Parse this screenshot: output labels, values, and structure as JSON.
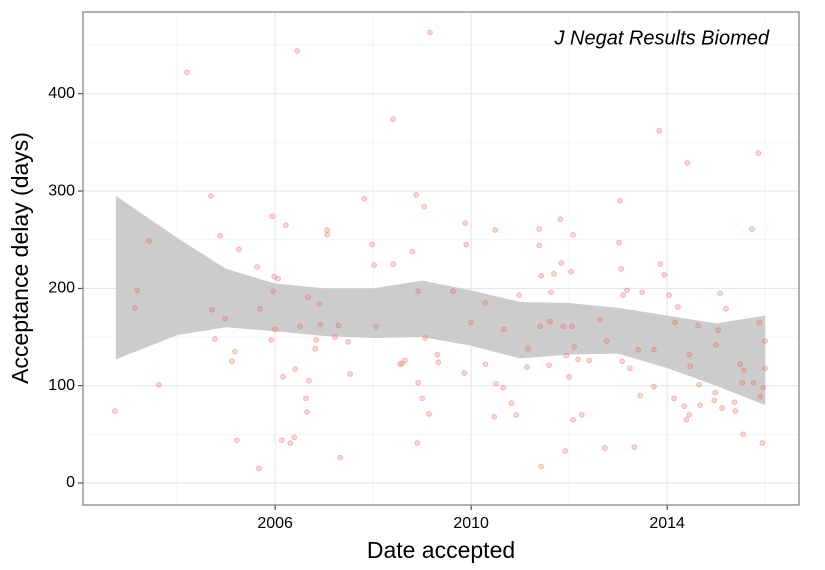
{
  "chart_data": {
    "type": "scatter",
    "annotation": "J Negat Results Biomed",
    "x_label": "Date accepted",
    "y_label": "Acceptance delay (days)",
    "xlim": [
      2002.08,
      2016.69
    ],
    "ylim": [
      -22.6,
      484
    ],
    "xticks": [
      2006,
      2010,
      2014
    ],
    "yticks": [
      0,
      100,
      200,
      300,
      400
    ],
    "grid": true,
    "point_color": "#f35a50",
    "band_color": "#cccccc",
    "x": [
      2002.73,
      2003.14,
      2003.18,
      2003.43,
      2003.63,
      2004.2,
      2004.69,
      2004.71,
      2004.77,
      2004.88,
      2004.98,
      2005.12,
      2005.18,
      2005.22,
      2005.26,
      2005.63,
      2005.67,
      2005.69,
      2005.92,
      2005.94,
      2005.96,
      2005.98,
      2006.0,
      2006.06,
      2006.14,
      2006.16,
      2006.22,
      2006.31,
      2006.39,
      2006.41,
      2006.45,
      2006.51,
      2006.63,
      2006.65,
      2006.67,
      2006.69,
      2006.82,
      2006.84,
      2006.9,
      2006.92,
      2007.06,
      2007.06,
      2007.22,
      2007.29,
      2007.33,
      2007.49,
      2007.53,
      2007.82,
      2007.98,
      2008.02,
      2008.06,
      2008.41,
      2008.41,
      2008.55,
      2008.59,
      2008.65,
      2008.8,
      2008.88,
      2008.9,
      2008.92,
      2008.92,
      2009.0,
      2009.04,
      2009.06,
      2009.14,
      2009.16,
      2009.31,
      2009.33,
      2009.63,
      2009.86,
      2009.88,
      2009.9,
      2010.0,
      2010.29,
      2010.29,
      2010.47,
      2010.49,
      2010.51,
      2010.65,
      2010.67,
      2010.82,
      2010.92,
      2010.98,
      2011.14,
      2011.16,
      2011.39,
      2011.39,
      2011.41,
      2011.43,
      2011.43,
      2011.59,
      2011.61,
      2011.63,
      2011.69,
      2011.82,
      2011.84,
      2011.88,
      2011.92,
      2011.94,
      2012.0,
      2012.04,
      2012.06,
      2012.08,
      2012.08,
      2012.1,
      2012.18,
      2012.26,
      2012.41,
      2012.63,
      2012.73,
      2012.76,
      2013.02,
      2013.04,
      2013.06,
      2013.08,
      2013.1,
      2013.18,
      2013.24,
      2013.33,
      2013.41,
      2013.45,
      2013.49,
      2013.73,
      2013.73,
      2013.84,
      2013.86,
      2013.94,
      2014.04,
      2014.14,
      2014.16,
      2014.22,
      2014.35,
      2014.39,
      2014.41,
      2014.45,
      2014.45,
      2014.47,
      2014.63,
      2014.65,
      2014.67,
      2014.96,
      2014.98,
      2015.0,
      2015.04,
      2015.08,
      2015.12,
      2015.2,
      2015.37,
      2015.39,
      2015.49,
      2015.53,
      2015.55,
      2015.57,
      2015.73,
      2015.76,
      2015.86,
      2015.88,
      2015.9,
      2015.94,
      2015.96,
      2016.0,
      2016.0
    ],
    "y": [
      74,
      180,
      198,
      249,
      101,
      422,
      295,
      178,
      148,
      254,
      169,
      125,
      135,
      44,
      240,
      222,
      15,
      179,
      147,
      274,
      197,
      212,
      158,
      210,
      44,
      109,
      265,
      41,
      47,
      117,
      444,
      161,
      87,
      73,
      191,
      105,
      138,
      147,
      184,
      163,
      260,
      255,
      150,
      162,
      26,
      145,
      112,
      292,
      245,
      224,
      161,
      374,
      225,
      122,
      123,
      126,
      238,
      296,
      41,
      197,
      103,
      87,
      284,
      149,
      71,
      463,
      132,
      124,
      197,
      113,
      267,
      245,
      165,
      122,
      185,
      68,
      260,
      102,
      98,
      158,
      82,
      70,
      193,
      119,
      138,
      261,
      244,
      161,
      17,
      213,
      121,
      166,
      196,
      215,
      271,
      226,
      161,
      33,
      131,
      109,
      217,
      161,
      255,
      65,
      140,
      127,
      70,
      126,
      168,
      36,
      146,
      247,
      290,
      220,
      125,
      193,
      198,
      118,
      37,
      137,
      90,
      196,
      137,
      99,
      362,
      225,
      214,
      193,
      87,
      165,
      181,
      79,
      65,
      329,
      70,
      132,
      120,
      162,
      101,
      80,
      85,
      93,
      142,
      157,
      195,
      77,
      179,
      83,
      74,
      122,
      103,
      50,
      116,
      261,
      103,
      339,
      165,
      89,
      41,
      98,
      118,
      146
    ],
    "band": {
      "x": [
        2002.75,
        2004,
        2005,
        2006,
        2007,
        2008,
        2009,
        2010,
        2011,
        2012,
        2013,
        2014,
        2015,
        2016
      ],
      "upper": [
        295,
        252,
        220,
        205,
        200,
        200,
        208,
        198,
        186,
        185,
        180,
        172,
        164,
        172
      ],
      "lower": [
        127,
        152,
        160,
        156,
        151,
        149,
        150,
        141,
        128,
        132,
        133,
        118,
        100,
        80
      ]
    }
  }
}
